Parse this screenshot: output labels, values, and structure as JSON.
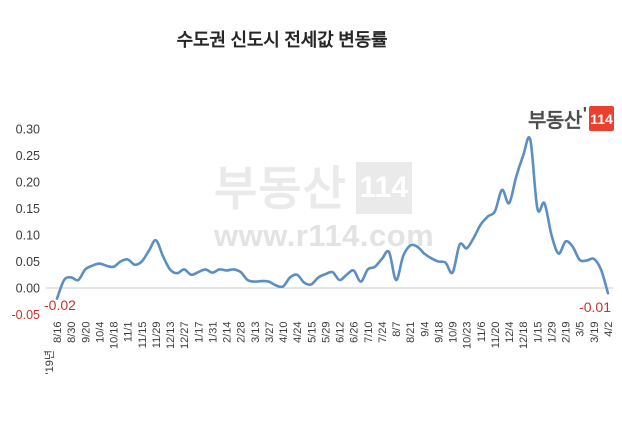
{
  "title": "수도권 신도시 전세값 변동률",
  "logo": {
    "brand": "부동산",
    "tick": "'",
    "badge": "114",
    "badge_color": "#e9402f"
  },
  "watermark": {
    "brand": "부동산",
    "badge": "114",
    "url": "www.r114.com"
  },
  "chart_data": {
    "type": "line",
    "title": "수도권 신도시 전세값 변동률",
    "ylim": [
      -0.05,
      0.3
    ],
    "yticks": [
      "0.30",
      "0.25",
      "0.20",
      "0.15",
      "0.10",
      "0.05",
      "0.00",
      "-0.05"
    ],
    "ytick_values": [
      0.3,
      0.25,
      0.2,
      0.15,
      0.1,
      0.05,
      0.0,
      -0.05
    ],
    "year_label": "'19년",
    "x_tick_labels": [
      "8/16",
      "8/30",
      "9/20",
      "10/4",
      "10/18",
      "11/1",
      "11/15",
      "11/29",
      "12/13",
      "12/27",
      "1/17",
      "1/31",
      "2/14",
      "2/28",
      "3/13",
      "3/27",
      "4/10",
      "4/24",
      "5/15",
      "5/29",
      "6/12",
      "6/26",
      "7/10",
      "7/24",
      "8/7",
      "8/21",
      "9/4",
      "9/18",
      "10/9",
      "10/23",
      "11/6",
      "11/20",
      "12/4",
      "12/18",
      "1/15",
      "1/29",
      "2/19",
      "3/5",
      "3/19",
      "4/2"
    ],
    "values": [
      -0.02,
      0.015,
      0.02,
      0.015,
      0.035,
      0.042,
      0.046,
      0.042,
      0.04,
      0.05,
      0.054,
      0.044,
      0.05,
      0.07,
      0.09,
      0.06,
      0.035,
      0.028,
      0.035,
      0.025,
      0.03,
      0.035,
      0.029,
      0.035,
      0.033,
      0.035,
      0.03,
      0.015,
      0.012,
      0.013,
      0.012,
      0.005,
      0.003,
      0.02,
      0.025,
      0.01,
      0.007,
      0.02,
      0.026,
      0.03,
      0.015,
      0.025,
      0.033,
      0.012,
      0.035,
      0.04,
      0.055,
      0.068,
      0.015,
      0.06,
      0.08,
      0.078,
      0.065,
      0.056,
      0.05,
      0.048,
      0.029,
      0.082,
      0.075,
      0.095,
      0.12,
      0.135,
      0.145,
      0.185,
      0.16,
      0.21,
      0.25,
      0.28,
      0.15,
      0.16,
      0.1,
      0.065,
      0.088,
      0.078,
      0.053,
      0.052,
      0.055,
      0.035,
      -0.01
    ],
    "first_point_annotation": "-0.02",
    "last_point_annotation": "-0.01",
    "line_color": "#5b8fc4",
    "grid": "zero-line-only",
    "gridline_color": "#cbcbcb",
    "axis_label_color": "#3b3b3b",
    "negative_label_color": "#c2352f",
    "legend": "none"
  }
}
